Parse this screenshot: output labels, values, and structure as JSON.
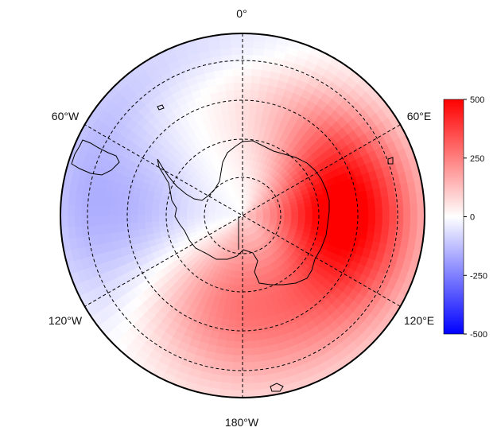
{
  "map": {
    "projection": "south-polar-stereographic",
    "longitude_labels": {
      "top": "0°",
      "upper_right": "60°E",
      "lower_right": "120°E",
      "bottom": "180°W",
      "lower_left": "120°W",
      "upper_left": "60°W"
    },
    "graticule": {
      "style": "dashed",
      "latitude_circles": 4,
      "meridian_spokes": 6
    },
    "field": {
      "min": -500,
      "max": 500,
      "positive_max_sector": "60°E–120°E",
      "negative_sector": "60°W–120°W",
      "secondary_positive_sector": "180°W–120°W"
    }
  },
  "colorbar": {
    "ticks": [
      "500",
      "250",
      "0",
      "-250",
      "-500"
    ],
    "tick_values": [
      500,
      250,
      0,
      -250,
      -500
    ],
    "color_high": "#ff0000",
    "color_mid": "#ffffff",
    "color_low": "#0000ff"
  },
  "colors": {
    "coast": "#000000",
    "grid": "#000000",
    "frame": "#000000"
  }
}
